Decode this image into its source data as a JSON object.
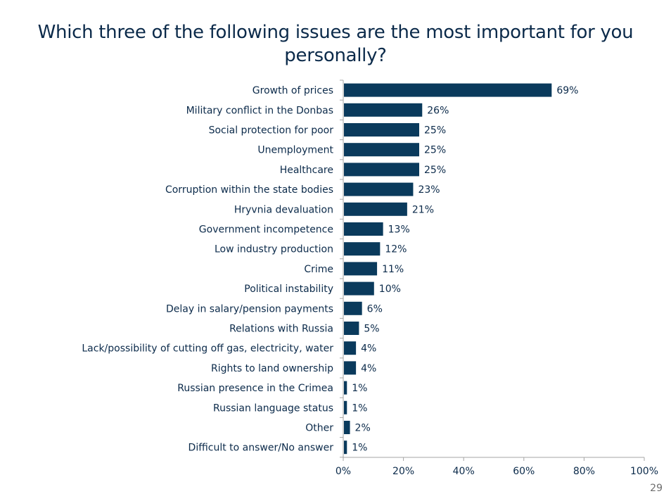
{
  "page_number": "29",
  "chart_data": {
    "type": "bar",
    "orientation": "horizontal",
    "title": "Which three of the following issues are the most important for you personally?",
    "xlabel": "",
    "ylabel": "",
    "xlim": [
      0,
      100
    ],
    "x_ticks": [
      "0%",
      "20%",
      "40%",
      "60%",
      "80%",
      "100%"
    ],
    "x_tick_values": [
      0,
      20,
      40,
      60,
      80,
      100
    ],
    "grid": false,
    "legend": "none",
    "bar_color": "#0a3a5c",
    "categories": [
      "Growth of prices",
      "Military conflict in the Donbas",
      "Social protection for poor",
      "Unemployment",
      "Healthcare",
      "Corruption within the state bodies",
      "Hryvnia devaluation",
      "Government incompetence",
      "Low industry production",
      "Crime",
      "Political instability",
      "Delay in salary/pension payments",
      "Relations with Russia",
      "Lack/possibility of cutting off gas, electricity, water",
      "Rights to land ownership",
      "Russian presence in the Crimea",
      "Russian language status",
      "Other",
      "Difficult to answer/No answer"
    ],
    "values": [
      69,
      26,
      25,
      25,
      25,
      23,
      21,
      13,
      12,
      11,
      10,
      6,
      5,
      4,
      4,
      1,
      1,
      2,
      1
    ],
    "value_labels": [
      "69%",
      "26%",
      "25%",
      "25%",
      "25%",
      "23%",
      "21%",
      "13%",
      "12%",
      "11%",
      "10%",
      "6%",
      "5%",
      "4%",
      "4%",
      "1%",
      "1%",
      "2%",
      "1%"
    ]
  }
}
